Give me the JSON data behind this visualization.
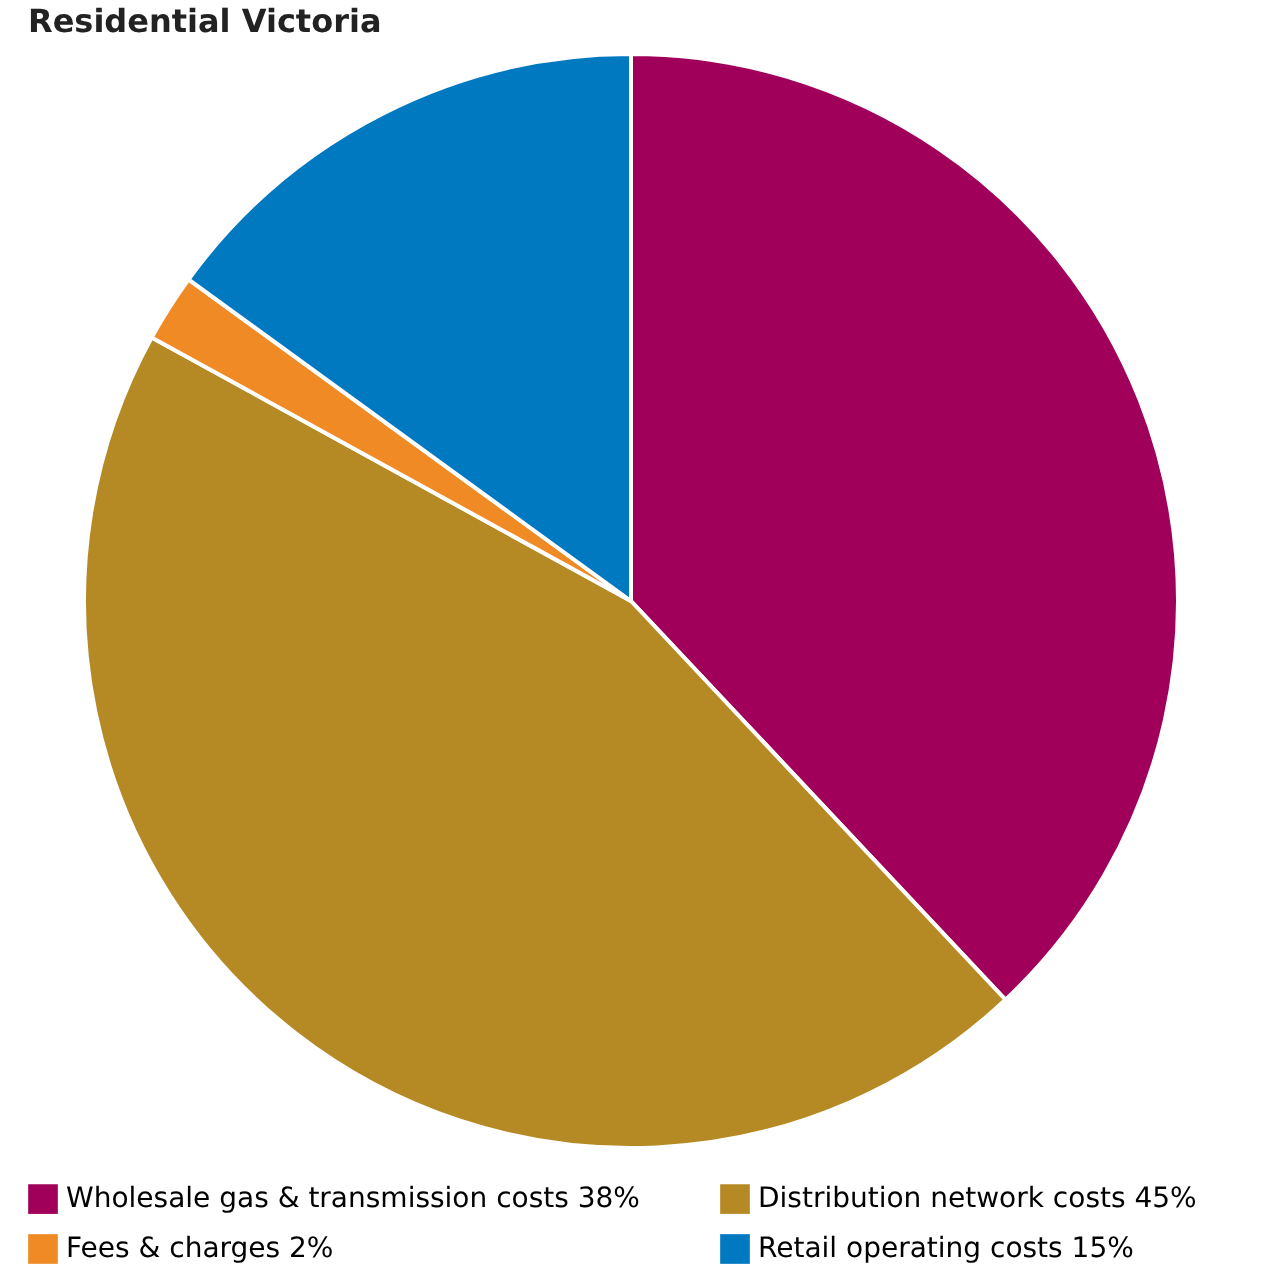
{
  "chart_data": {
    "type": "pie",
    "title": "Residential Victoria",
    "categories": [
      "Wholesale gas & transmission costs",
      "Distribution network costs",
      "Fees & charges",
      "Retail operating costs"
    ],
    "values": [
      38,
      45,
      2,
      15
    ],
    "value_labels": [
      "38%",
      "45%",
      "2%",
      "15%"
    ],
    "colors": [
      "#a0005a",
      "#b58a24",
      "#f08a24",
      "#0079c1"
    ],
    "legend": "bottom"
  }
}
